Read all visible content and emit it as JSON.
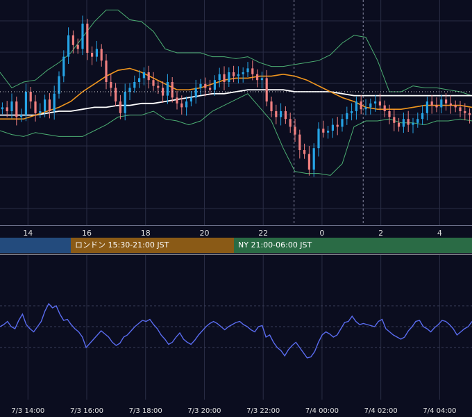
{
  "colors": {
    "background": "#0b0d1f",
    "grid": "#2a2d45",
    "candle_up": "#26a4e6",
    "candle_down": "#f08080",
    "bollinger": "#4caf73",
    "ma_short": "#f0961e",
    "ma_long": "#ffffff",
    "rsi_line": "#5a6cf0",
    "axis_text": "#e0e0e0",
    "session_tokyo": "#234b7d",
    "session_london": "#8a5a16",
    "session_ny": "#2a6b45"
  },
  "sessions": {
    "tokyo": {
      "label": ""
    },
    "london": {
      "label": "ロンドン 15:30-21:00 JST"
    },
    "ny": {
      "label": "NY 21:00-06:00 JST"
    }
  },
  "chart_data": [
    {
      "type": "candlestick",
      "panel": "price",
      "x_tick_labels": [
        "14",
        "16",
        "18",
        "20",
        "22",
        "0",
        "2",
        "4"
      ],
      "x_tick_hours": [
        14,
        16,
        18,
        20,
        22,
        24,
        26,
        28
      ],
      "xlim_hours": [
        13.05,
        29.1
      ],
      "ylim": [
        0,
        1
      ],
      "grid": true,
      "series": [
        {
          "kind": "candles",
          "close": [
            0.52,
            0.5,
            0.55,
            0.47,
            0.48,
            0.6,
            0.55,
            0.49,
            0.5,
            0.56,
            0.5,
            0.59,
            0.68,
            0.78,
            0.89,
            0.84,
            0.82,
            0.95,
            0.8,
            0.78,
            0.82,
            0.76,
            0.65,
            0.62,
            0.55,
            0.49,
            0.6,
            0.62,
            0.65,
            0.67,
            0.7,
            0.66,
            0.63,
            0.62,
            0.58,
            0.65,
            0.57,
            0.54,
            0.52,
            0.55,
            0.57,
            0.62,
            0.64,
            0.62,
            0.61,
            0.66,
            0.69,
            0.65,
            0.7,
            0.68,
            0.69,
            0.7,
            0.72,
            0.69,
            0.66,
            0.67,
            0.55,
            0.5,
            0.47,
            0.5,
            0.46,
            0.42,
            0.38,
            0.3,
            0.28,
            0.2,
            0.31,
            0.41,
            0.39,
            0.4,
            0.43,
            0.42,
            0.46,
            0.49,
            0.5,
            0.55,
            0.51,
            0.52,
            0.54,
            0.55,
            0.53,
            0.5,
            0.47,
            0.44,
            0.42,
            0.46,
            0.43,
            0.44,
            0.46,
            0.49,
            0.55,
            0.53,
            0.52,
            0.56,
            0.54,
            0.53,
            0.52,
            0.5,
            0.49,
            0.48
          ]
        },
        {
          "kind": "bollinger_upper",
          "values": [
            0.7,
            0.62,
            0.65,
            0.66,
            0.71,
            0.75,
            0.8,
            0.88,
            0.96,
            1.02,
            1.02,
            0.97,
            0.96,
            0.91,
            0.82,
            0.8,
            0.8,
            0.8,
            0.78,
            0.78,
            0.77,
            0.78,
            0.75,
            0.73,
            0.73,
            0.74,
            0.75,
            0.76,
            0.79,
            0.85,
            0.89,
            0.88,
            0.76,
            0.6,
            0.6,
            0.63,
            0.62,
            0.62,
            0.61,
            0.6,
            0.58
          ]
        },
        {
          "kind": "bollinger_lower",
          "values": [
            0.4,
            0.38,
            0.37,
            0.39,
            0.38,
            0.37,
            0.37,
            0.37,
            0.4,
            0.43,
            0.47,
            0.48,
            0.48,
            0.5,
            0.46,
            0.45,
            0.43,
            0.45,
            0.5,
            0.53,
            0.56,
            0.59,
            0.52,
            0.45,
            0.31,
            0.19,
            0.18,
            0.18,
            0.17,
            0.23,
            0.42,
            0.45,
            0.45,
            0.46,
            0.44,
            0.44,
            0.43,
            0.45,
            0.45,
            0.46,
            0.45
          ]
        },
        {
          "kind": "ma_short",
          "values": [
            0.46,
            0.46,
            0.46,
            0.48,
            0.5,
            0.52,
            0.55,
            0.6,
            0.64,
            0.68,
            0.71,
            0.72,
            0.7,
            0.67,
            0.64,
            0.61,
            0.61,
            0.62,
            0.64,
            0.66,
            0.67,
            0.67,
            0.68,
            0.68,
            0.69,
            0.68,
            0.66,
            0.63,
            0.6,
            0.57,
            0.55,
            0.52,
            0.51,
            0.51,
            0.51,
            0.52,
            0.53,
            0.53,
            0.53,
            0.53,
            0.52
          ]
        },
        {
          "kind": "ma_long",
          "values": [
            0.48,
            0.48,
            0.48,
            0.48,
            0.49,
            0.5,
            0.5,
            0.51,
            0.52,
            0.52,
            0.53,
            0.53,
            0.54,
            0.54,
            0.55,
            0.56,
            0.57,
            0.58,
            0.59,
            0.59,
            0.6,
            0.61,
            0.61,
            0.61,
            0.61,
            0.6,
            0.6,
            0.6,
            0.6,
            0.59,
            0.58,
            0.58,
            0.58,
            0.58,
            0.58,
            0.58,
            0.58,
            0.58,
            0.58,
            0.58,
            0.58
          ]
        }
      ],
      "reference_line": 0.6
    },
    {
      "type": "line",
      "panel": "rsi",
      "x_tick_labels": [
        "7/3 14:00",
        "7/3 16:00",
        "7/3 18:00",
        "7/3 20:00",
        "7/3 22:00",
        "7/4 00:00",
        "7/4 02:00",
        "7/4 04:00"
      ],
      "x_tick_hours": [
        14,
        16,
        18,
        20,
        22,
        24,
        26,
        28
      ],
      "xlim_hours": [
        13.05,
        29.1
      ],
      "ylim": [
        0,
        1
      ],
      "grid_levels": [
        0.3,
        0.5,
        0.7
      ],
      "values": [
        0.5,
        0.52,
        0.55,
        0.5,
        0.48,
        0.56,
        0.62,
        0.52,
        0.48,
        0.45,
        0.5,
        0.55,
        0.65,
        0.72,
        0.68,
        0.7,
        0.62,
        0.56,
        0.57,
        0.52,
        0.48,
        0.45,
        0.4,
        0.3,
        0.34,
        0.38,
        0.42,
        0.46,
        0.43,
        0.4,
        0.35,
        0.32,
        0.34,
        0.4,
        0.42,
        0.46,
        0.5,
        0.53,
        0.56,
        0.55,
        0.57,
        0.52,
        0.48,
        0.42,
        0.38,
        0.33,
        0.35,
        0.4,
        0.44,
        0.38,
        0.35,
        0.33,
        0.37,
        0.42,
        0.46,
        0.5,
        0.53,
        0.55,
        0.53,
        0.5,
        0.47,
        0.5,
        0.52,
        0.54,
        0.55,
        0.52,
        0.5,
        0.47,
        0.45,
        0.5,
        0.51,
        0.4,
        0.42,
        0.35,
        0.3,
        0.27,
        0.22,
        0.28,
        0.32,
        0.35,
        0.3,
        0.25,
        0.2,
        0.21,
        0.26,
        0.35,
        0.42,
        0.45,
        0.43,
        0.4,
        0.42,
        0.48,
        0.54,
        0.55,
        0.6,
        0.55,
        0.52,
        0.53,
        0.52,
        0.51,
        0.5,
        0.55,
        0.57,
        0.48,
        0.45,
        0.42,
        0.4,
        0.38,
        0.4,
        0.46,
        0.5,
        0.55,
        0.56,
        0.5,
        0.48,
        0.45,
        0.49,
        0.52,
        0.56,
        0.55,
        0.52,
        0.48,
        0.42,
        0.45,
        0.48,
        0.5,
        0.55
      ]
    }
  ]
}
